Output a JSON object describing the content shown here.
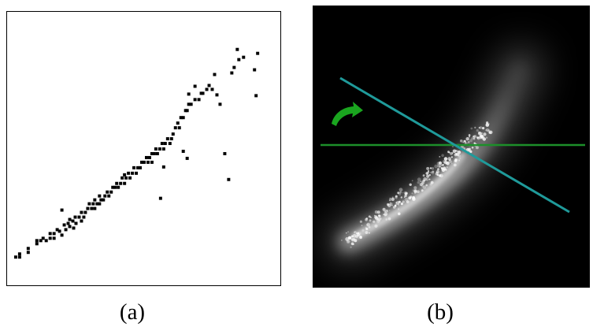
{
  "figure": {
    "panel_a": {
      "caption": "(a)",
      "point_color": "#000000",
      "frame_color": "#000000"
    },
    "panel_b": {
      "caption": "(b)",
      "background_color": "#000000",
      "glow_color": "#ffffff",
      "horizontal_line_color": "#1d8f2a",
      "rotated_line_color": "#1f9a9a",
      "rotation_arrow_color": "#1aa51f",
      "rotation_arrow_icon": "curved-rotation-arrow-icon"
    }
  }
}
